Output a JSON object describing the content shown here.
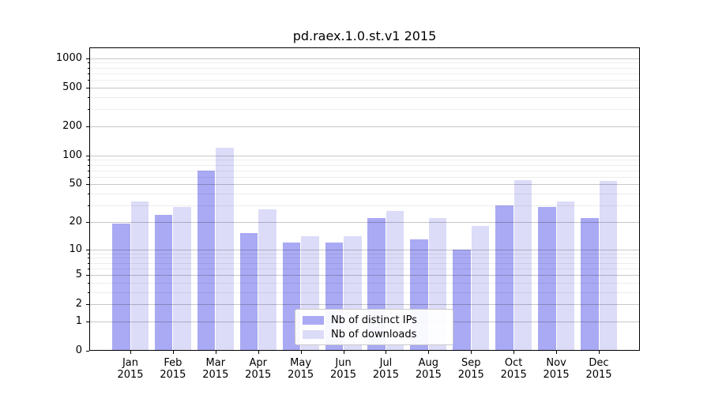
{
  "chart_data": {
    "type": "bar",
    "title": "pd.raex.1.0.st.v1 2015",
    "categories": [
      "Jan",
      "Feb",
      "Mar",
      "Apr",
      "May",
      "Jun",
      "Jul",
      "Aug",
      "Sep",
      "Oct",
      "Nov",
      "Dec"
    ],
    "category_second_line": "2015",
    "series": [
      {
        "name": "Nb of distinct IPs",
        "color": "#a9a9f4",
        "values": [
          19,
          24,
          69,
          15,
          12,
          12,
          22,
          13,
          10,
          30,
          29,
          22
        ]
      },
      {
        "name": "Nb of downloads",
        "color": "#dcdcf8",
        "values": [
          33,
          29,
          120,
          27,
          14,
          14,
          26,
          22,
          18,
          55,
          33,
          54
        ]
      }
    ],
    "xlabel": "",
    "ylabel": "",
    "yscale": "log1p",
    "ylim": [
      0,
      1295
    ],
    "yticks": [
      0,
      1,
      2,
      5,
      10,
      20,
      50,
      100,
      200,
      500,
      1000
    ],
    "yticks_minor": [
      3,
      4,
      6,
      7,
      8,
      9,
      30,
      40,
      60,
      70,
      80,
      90,
      300,
      400,
      600,
      700,
      800,
      900
    ],
    "grid": "both",
    "legend_position": "lower center"
  }
}
